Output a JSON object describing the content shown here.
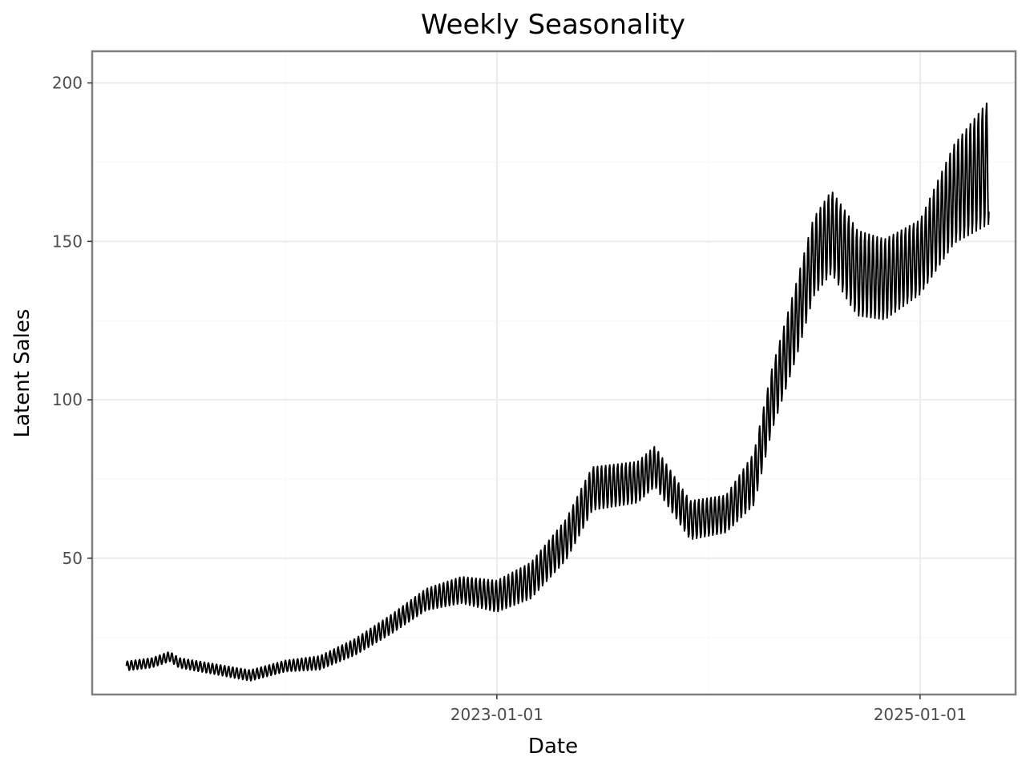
{
  "chart_data": {
    "type": "line",
    "title": "Weekly Seasonality",
    "xlabel": "Date",
    "ylabel": "Latent Sales",
    "x_start": "2021-04-01",
    "x_end": "2025-04-30",
    "xlim": [
      "2021-02-01",
      "2025-06-15"
    ],
    "ylim": [
      7,
      210
    ],
    "x_ticks": [
      "2023-01-01",
      "2025-01-01"
    ],
    "y_ticks": [
      50,
      100,
      150,
      200
    ],
    "grid": true,
    "weekly_cycle": true,
    "series": [
      {
        "color": "#000000",
        "trend": [
          [
            "2021-04-01",
            16
          ],
          [
            "2021-05-15",
            17
          ],
          [
            "2021-06-15",
            19
          ],
          [
            "2021-07-01",
            17
          ],
          [
            "2021-09-01",
            15
          ],
          [
            "2021-10-01",
            14
          ],
          [
            "2021-11-01",
            13
          ],
          [
            "2022-01-01",
            16
          ],
          [
            "2022-03-01",
            17
          ],
          [
            "2022-05-01",
            22
          ],
          [
            "2022-07-01",
            29
          ],
          [
            "2022-09-01",
            37
          ],
          [
            "2022-11-01",
            40
          ],
          [
            "2023-01-01",
            38
          ],
          [
            "2023-03-01",
            43
          ],
          [
            "2023-05-01",
            56
          ],
          [
            "2023-06-15",
            72
          ],
          [
            "2023-09-01",
            74
          ],
          [
            "2023-10-01",
            79
          ],
          [
            "2023-12-01",
            62
          ],
          [
            "2024-02-01",
            64
          ],
          [
            "2024-03-20",
            75
          ],
          [
            "2024-04-20",
            100
          ],
          [
            "2024-06-01",
            125
          ],
          [
            "2024-07-01",
            145
          ],
          [
            "2024-08-01",
            153
          ],
          [
            "2024-09-15",
            140
          ],
          [
            "2024-11-01",
            138
          ],
          [
            "2025-01-01",
            145
          ],
          [
            "2025-03-01",
            165
          ],
          [
            "2025-04-30",
            175
          ]
        ],
        "amplitude": [
          [
            "2021-04-01",
            1.5
          ],
          [
            "2022-01-01",
            1.8
          ],
          [
            "2022-09-01",
            3.5
          ],
          [
            "2023-06-01",
            7
          ],
          [
            "2024-02-01",
            6
          ],
          [
            "2024-06-01",
            12
          ],
          [
            "2024-09-01",
            14
          ],
          [
            "2025-01-01",
            12
          ],
          [
            "2025-04-30",
            20
          ]
        ]
      }
    ]
  }
}
